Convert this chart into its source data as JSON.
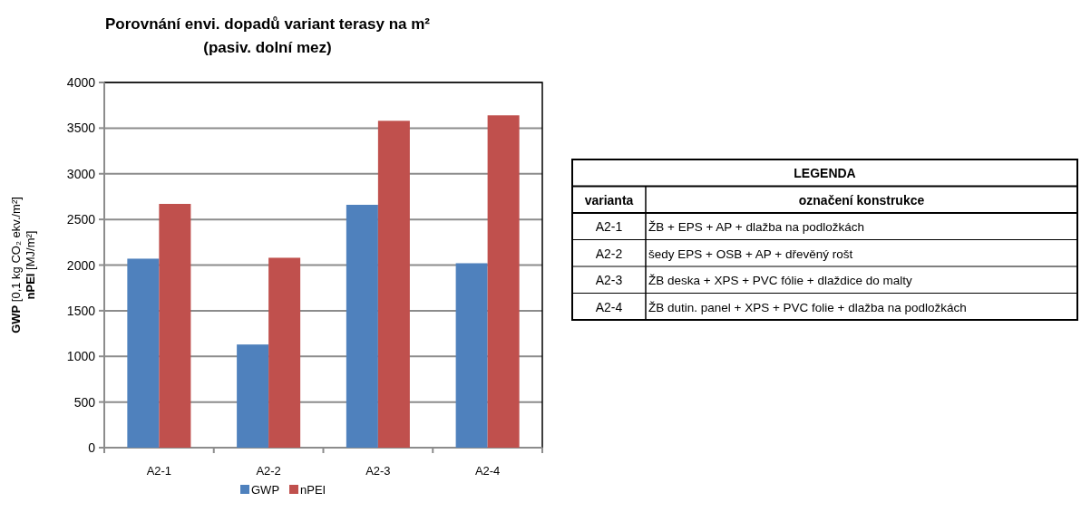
{
  "chart_data": [
    {
      "type": "bar",
      "title": "Porovnání envi. dopadů variant terasy na m²\n(pasiv. dolní mez)",
      "ylabel": "GWP [0,1 kg CO₂ ekv./m²]\nnPEI [MJ/m²]",
      "categories": [
        "A2-1",
        "A2-2",
        "A2-3",
        "A2-4"
      ],
      "series": [
        {
          "name": "GWP",
          "color": "#4f81bd",
          "values": [
            2070,
            1130,
            2660,
            2020
          ]
        },
        {
          "name": "nPEI",
          "color": "#c0504d",
          "values": [
            2670,
            2080,
            3580,
            3640
          ]
        }
      ],
      "ylim": [
        0,
        4000
      ],
      "yticks": [
        0,
        500,
        1000,
        1500,
        2000,
        2500,
        3000,
        3500,
        4000
      ],
      "grid": "y",
      "legend": "bottom"
    },
    {
      "type": "other",
      "title": "LEGENDA",
      "annotations": [
        "varianta",
        "označení konstrukce",
        "A2-1",
        "ŽB + EPS + AP + dlažba na podložkách",
        "A2-2",
        "šedy EPS + OSB + AP + dřevěný rošt",
        "A2-3",
        "ŽB deska + XPS + PVC fólie + dlaždice do malty",
        "A2-4",
        "ŽB dutin. panel + XPS + PVC folie + dlažba na podložkách"
      ]
    }
  ]
}
